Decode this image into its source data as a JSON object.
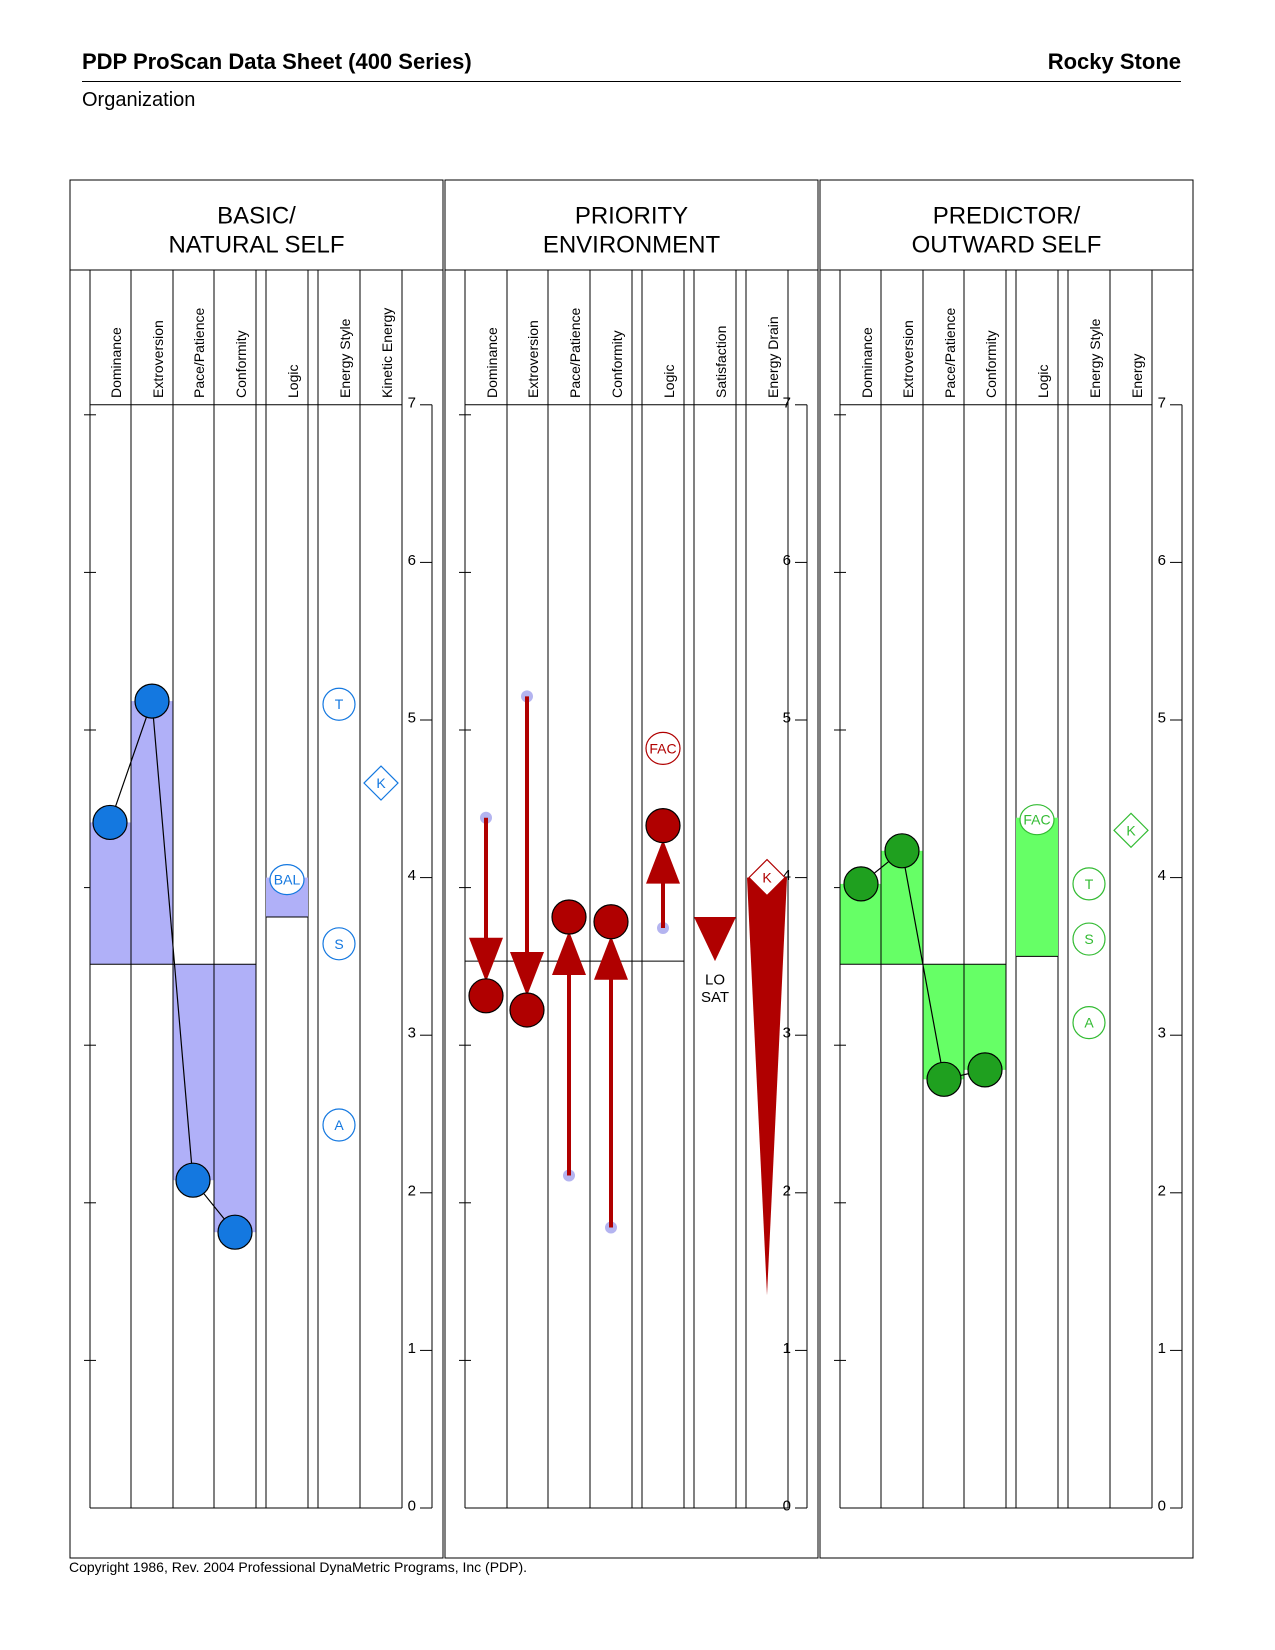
{
  "header": {
    "title": "PDP ProScan Data Sheet (400 Series)",
    "name": "Rocky Stone",
    "organization": "Organization"
  },
  "footer": {
    "copyright": "Copyright 1986, Rev. 2004 Professional DynaMetric Programs, Inc (PDP)."
  },
  "colors": {
    "basic_fill": "#b0b0f8",
    "basic_dot": "#1478e0",
    "priority": "#b00000",
    "priority_dot_light": "#b4b4f0",
    "predictor_fill": "#66ff66",
    "predictor_dot": "#1fa01f",
    "predictor_text": "#33bb33"
  },
  "chart_data": {
    "type": "table",
    "scale": {
      "min": 0,
      "max": 7,
      "ticks": [
        "0",
        "1",
        "2",
        "3",
        "4",
        "5",
        "6",
        "7"
      ]
    },
    "panels": [
      {
        "id": "basic",
        "title_line1": "BASIC/",
        "title_line2": "NATURAL SELF",
        "columns": [
          "Dominance",
          "Extroversion",
          "Pace/Patience",
          "Conformity",
          "Logic",
          "Energy Style",
          "Kinetic Energy"
        ],
        "baseline": 3.45,
        "traits": {
          "Dominance": 4.35,
          "Extroversion": 5.12,
          "Pace/Patience": 2.08,
          "Conformity": 1.75
        },
        "logic": {
          "label": "BAL",
          "value": 4.0,
          "bar_bottom": 3.75
        },
        "energy_style": [
          {
            "label": "T",
            "value": 5.1
          },
          {
            "label": "S",
            "value": 3.58
          },
          {
            "label": "A",
            "value": 2.43
          }
        ],
        "kinetic_energy": {
          "label": "K",
          "value": 4.6
        }
      },
      {
        "id": "priority",
        "title_line1": "PRIORITY",
        "title_line2": "ENVIRONMENT",
        "columns": [
          "Dominance",
          "Extroversion",
          "Pace/Patience",
          "Conformity",
          "Logic",
          "Satisfaction",
          "Energy Drain"
        ],
        "baseline": 3.47,
        "shifts": [
          {
            "trait": "Dominance",
            "from": 4.38,
            "to": 3.25
          },
          {
            "trait": "Extroversion",
            "from": 5.15,
            "to": 3.16
          },
          {
            "trait": "Pace/Patience",
            "from": 2.11,
            "to": 3.75
          },
          {
            "trait": "Conformity",
            "from": 1.78,
            "to": 3.72
          },
          {
            "trait": "Logic",
            "from": 3.68,
            "to": 4.33
          }
        ],
        "logic_label": {
          "label": "FAC",
          "value": 4.82
        },
        "satisfaction": {
          "label_line1": "LO",
          "label_line2": "SAT",
          "value": 3.6
        },
        "energy_drain": {
          "label": "K",
          "top": 4.0,
          "bottom": 1.35
        }
      },
      {
        "id": "predictor",
        "title_line1": "PREDICTOR/",
        "title_line2": "OUTWARD SELF",
        "columns": [
          "Dominance",
          "Extroversion",
          "Pace/Patience",
          "Conformity",
          "Logic",
          "Energy Style",
          "Energy"
        ],
        "baseline": 3.45,
        "traits": {
          "Dominance": 3.96,
          "Extroversion": 4.17,
          "Pace/Patience": 2.72,
          "Conformity": 2.78
        },
        "logic": {
          "label": "FAC",
          "value": 4.38,
          "bar_bottom": 3.5
        },
        "energy_style": [
          {
            "label": "T",
            "value": 3.96
          },
          {
            "label": "S",
            "value": 3.61
          },
          {
            "label": "A",
            "value": 3.08
          }
        ],
        "energy": {
          "label": "K",
          "value": 4.3
        }
      }
    ]
  }
}
